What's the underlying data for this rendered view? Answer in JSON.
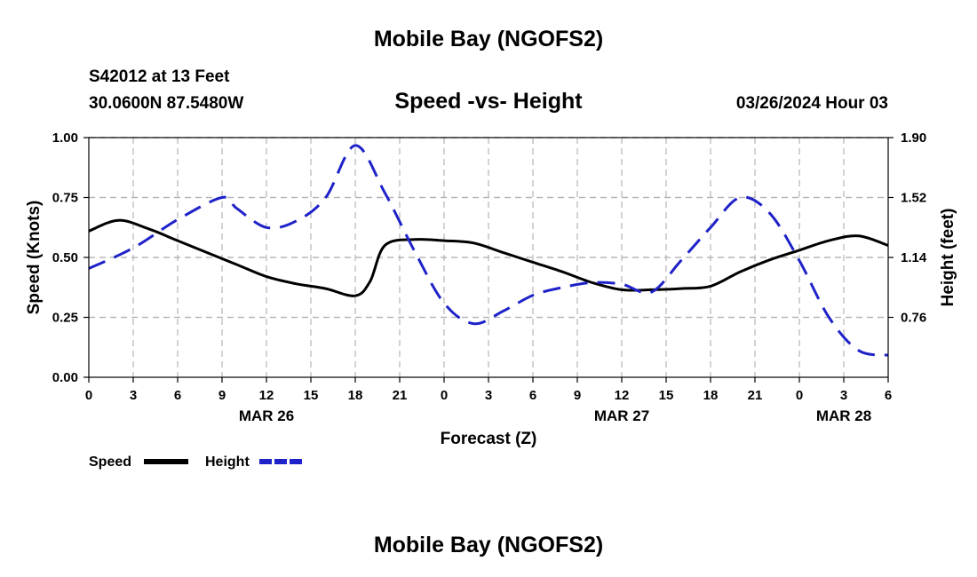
{
  "header": {
    "title": "Mobile Bay (NGOFS2)",
    "station": "S42012 at 13 Feet",
    "coords": "30.0600N  87.5480W",
    "subtitle": "Speed -vs- Height",
    "datetime": "03/26/2024 Hour 03",
    "footer_title": "Mobile Bay (NGOFS2)"
  },
  "chart_data": {
    "type": "line",
    "title": "Speed -vs- Height",
    "xlabel": "Forecast (Z)",
    "ylabel_left": "Speed (Knots)",
    "ylabel_right": "Height (feet)",
    "x_range": [
      0,
      54
    ],
    "ylim_left": [
      0,
      1
    ],
    "ylim_right": [
      0.38,
      1.9
    ],
    "x_tick_labels": [
      "0",
      "3",
      "6",
      "9",
      "12",
      "15",
      "18",
      "21",
      "0",
      "3",
      "6",
      "9",
      "12",
      "15",
      "18",
      "21",
      "0",
      "3",
      "6"
    ],
    "left_tick_labels": [
      "0.00",
      "0.25",
      "0.50",
      "0.75",
      "1.00"
    ],
    "right_tick_labels": [
      "0.76",
      "1.14",
      "1.52",
      "1.90"
    ],
    "day_labels": [
      {
        "label": "MAR 26",
        "hour": 12
      },
      {
        "label": "MAR 27",
        "hour": 36
      },
      {
        "label": "MAR 28",
        "hour": 51
      }
    ],
    "grid": true,
    "legend_position": "bottom-left",
    "series": [
      {
        "name": "Speed",
        "axis": "left",
        "color": "#000000",
        "style": "solid",
        "x": [
          0,
          2,
          4,
          6,
          8,
          10,
          12,
          14,
          16,
          18,
          19,
          20,
          22,
          24,
          26,
          28,
          30,
          32,
          34,
          36,
          38,
          40,
          42,
          44,
          46,
          48,
          50,
          52,
          54
        ],
        "y": [
          0.61,
          0.655,
          0.62,
          0.57,
          0.52,
          0.47,
          0.42,
          0.39,
          0.37,
          0.34,
          0.4,
          0.55,
          0.575,
          0.57,
          0.56,
          0.52,
          0.48,
          0.44,
          0.395,
          0.365,
          0.365,
          0.37,
          0.38,
          0.44,
          0.49,
          0.53,
          0.57,
          0.59,
          0.55
        ]
      },
      {
        "name": "Height",
        "axis": "right",
        "color": "#1e22c8",
        "style": "dashed",
        "x": [
          0,
          3,
          6,
          9,
          10,
          12,
          14,
          16,
          18,
          20,
          22,
          24,
          26,
          28,
          30,
          32,
          34,
          36,
          38,
          40,
          42,
          44,
          46,
          48,
          50,
          52,
          54
        ],
        "y": [
          1.07,
          1.2,
          1.38,
          1.52,
          1.45,
          1.33,
          1.37,
          1.52,
          1.85,
          1.55,
          1.18,
          0.85,
          0.72,
          0.8,
          0.9,
          0.95,
          0.98,
          0.97,
          0.92,
          1.12,
          1.33,
          1.52,
          1.42,
          1.12,
          0.76,
          0.55,
          0.52
        ]
      }
    ]
  }
}
